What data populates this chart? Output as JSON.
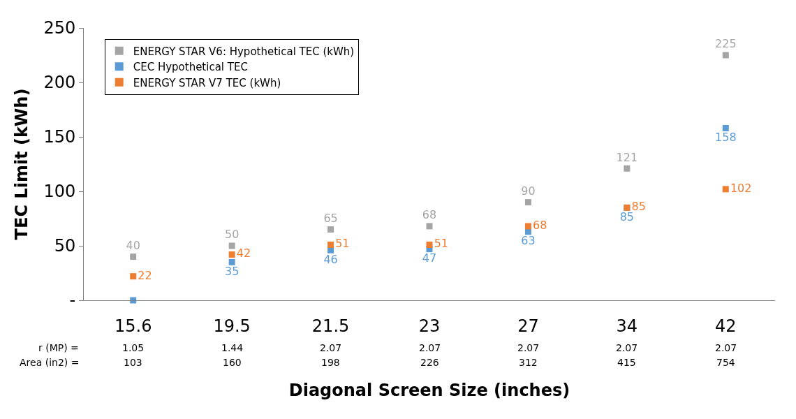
{
  "chart_data": {
    "type": "scatter",
    "xlabel": "Diagonal Screen Size (inches)",
    "ylabel": "TEC Limit (kWh)",
    "categories": [
      "15.6",
      "19.5",
      "21.5",
      "23",
      "27",
      "34",
      "42"
    ],
    "series": [
      {
        "name": "ENERGY STAR V6: Hypothetical TEC (kWh)",
        "color": "#a5a5a5",
        "values": [
          40,
          50,
          65,
          68,
          90,
          121,
          225
        ],
        "value_labels": [
          "40",
          "50",
          "65",
          "68",
          "90",
          "121",
          "225"
        ]
      },
      {
        "name": "CEC Hypothetical TEC",
        "color": "#5b9bd5",
        "values": [
          0,
          35,
          46,
          47,
          63,
          85,
          158
        ],
        "value_labels": [
          null,
          "35",
          "46",
          "47",
          "63",
          "85",
          "158"
        ]
      },
      {
        "name": "ENERGY STAR V7 TEC (kWh)",
        "color": "#ed7d31",
        "values": [
          22,
          42,
          51,
          51,
          68,
          85,
          102
        ],
        "value_labels": [
          "22",
          "42",
          "51",
          "51",
          "68",
          "85",
          "102"
        ]
      }
    ],
    "ylim": [
      0,
      250
    ],
    "yticks": [
      {
        "value": 0,
        "label": "-"
      },
      50,
      100,
      150,
      200,
      250
    ],
    "legend": "top left",
    "marker": "square",
    "annotations": [
      "r (MP) =",
      "1.05",
      "1.44",
      "2.07",
      "2.07",
      "2.07",
      "2.07",
      "2.07",
      "Area (in2) =",
      "103",
      "160",
      "198",
      "226",
      "312",
      "415",
      "754"
    ]
  }
}
